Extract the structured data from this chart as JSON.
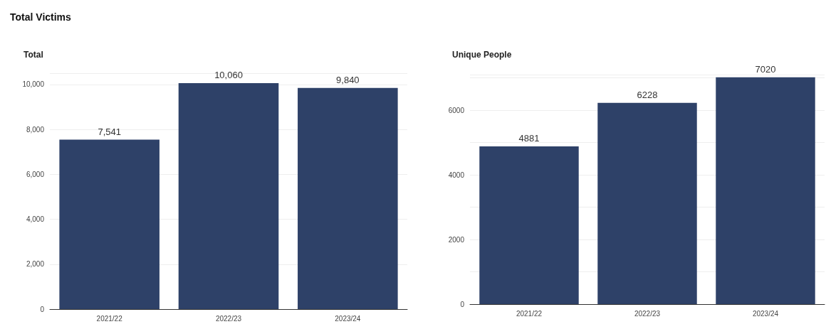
{
  "chart_data": [
    {
      "type": "bar",
      "title": "Total",
      "annotations": [
        "Total Victims"
      ],
      "categories": [
        "2021/22",
        "2022/23",
        "2023/24"
      ],
      "values": [
        7541,
        10060,
        9840
      ],
      "value_labels": [
        "7,541",
        "10,060",
        "9,840"
      ],
      "color": "#2e4168",
      "ylim": [
        0,
        10500
      ],
      "yticks": [
        0,
        {
          "value": 2000,
          "label": "2,000"
        },
        {
          "value": 4000,
          "label": "4,000"
        },
        {
          "value": 6000,
          "label": "6,000"
        },
        {
          "value": 8000,
          "label": "8,000"
        },
        {
          "value": 10000,
          "label": "10,000"
        }
      ],
      "grid": "y"
    },
    {
      "type": "bar",
      "title": "Unique People",
      "categories": [
        "2021/22",
        "2022/23",
        "2023/24"
      ],
      "values": [
        4881,
        6228,
        7020
      ],
      "data_labels": true,
      "color": "#2e4168",
      "ylim": [
        0,
        7100
      ],
      "yticks": [
        0,
        2000,
        4000,
        6000
      ],
      "grid": "y"
    }
  ]
}
